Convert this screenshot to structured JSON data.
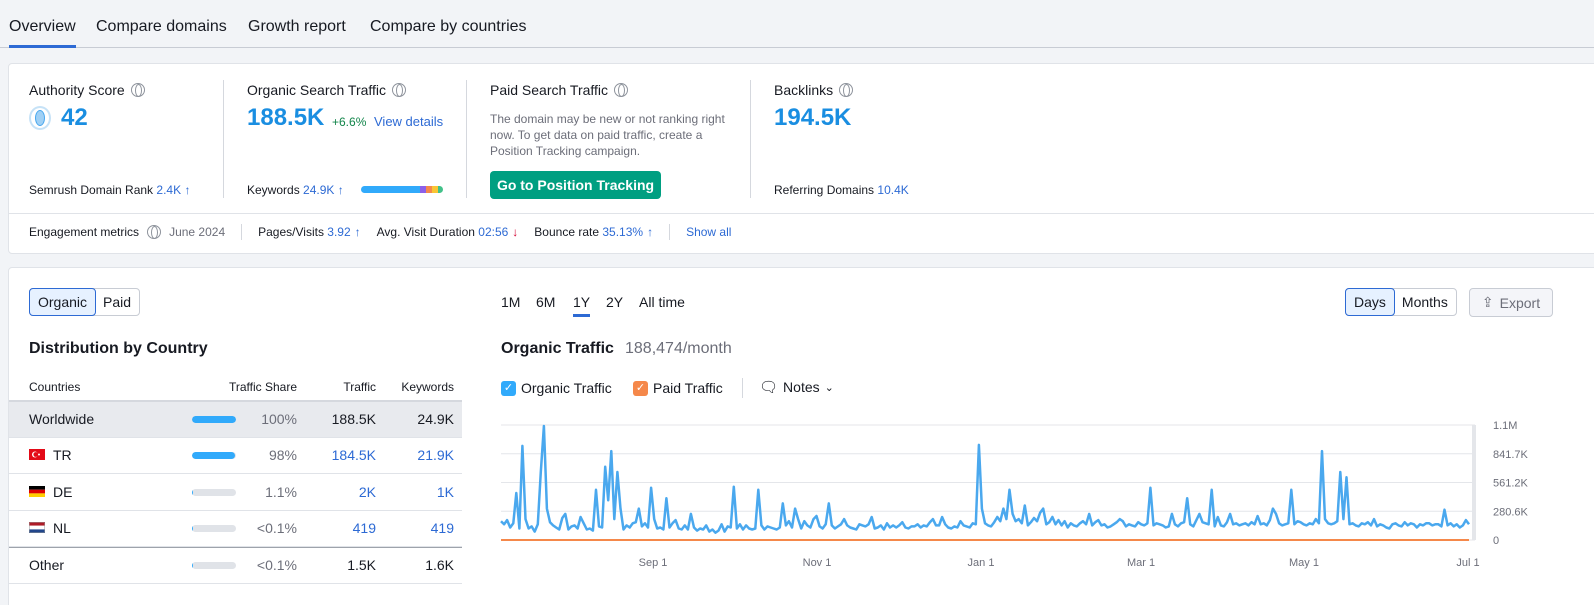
{
  "tabs": [
    "Overview",
    "Compare domains",
    "Growth report",
    "Compare by countries"
  ],
  "authority": {
    "title": "Authority Score",
    "value": "42",
    "rank_label": "Semrush Domain Rank",
    "rank_value": "2.4K"
  },
  "organic": {
    "title": "Organic Search Traffic",
    "value": "188.5K",
    "change": "+6.6%",
    "details_link": "View details",
    "keywords_label": "Keywords",
    "keywords_value": "24.9K"
  },
  "paid": {
    "title": "Paid Search Traffic",
    "note": "The domain may be new or not ranking right now. To get data on paid traffic, create a Position Tracking campaign.",
    "button": "Go to Position Tracking"
  },
  "backlinks": {
    "title": "Backlinks",
    "value": "194.5K",
    "ref_label": "Referring Domains",
    "ref_value": "10.4K"
  },
  "engagement": {
    "label": "Engagement metrics",
    "date": "June 2024",
    "pages_label": "Pages/Visits",
    "pages_value": "3.92",
    "duration_label": "Avg. Visit Duration",
    "duration_value": "02:56",
    "bounce_label": "Bounce rate",
    "bounce_value": "35.13%",
    "show_all": "Show all"
  },
  "toggle": {
    "organic": "Organic",
    "paid": "Paid"
  },
  "distribution": {
    "title": "Distribution by Country",
    "headers": {
      "countries": "Countries",
      "share": "Traffic Share",
      "traffic": "Traffic",
      "keywords": "Keywords"
    },
    "rows": [
      {
        "country": "Worldwide",
        "share": "100%",
        "share_fraction": 1.0,
        "traffic": "188.5K",
        "keywords": "24.9K"
      },
      {
        "country": "TR",
        "share": "98%",
        "share_fraction": 0.98,
        "traffic": "184.5K",
        "keywords": "21.9K"
      },
      {
        "country": "DE",
        "share": "1.1%",
        "share_fraction": 0.011,
        "traffic": "2K",
        "keywords": "1K"
      },
      {
        "country": "NL",
        "share": "<0.1%",
        "share_fraction": 0.001,
        "traffic": "419",
        "keywords": "419"
      },
      {
        "country": "Other",
        "share": "<0.1%",
        "share_fraction": 0.001,
        "traffic": "1.5K",
        "keywords": "1.6K"
      }
    ]
  },
  "ranges": [
    "1M",
    "6M",
    "1Y",
    "2Y",
    "All time"
  ],
  "granularity": {
    "days": "Days",
    "months": "Months",
    "export": "Export"
  },
  "chart_header": {
    "title": "Organic Traffic",
    "subtitle": "188,474/month"
  },
  "legend": {
    "organic": "Organic Traffic",
    "paid": "Paid Traffic",
    "notes": "Notes"
  },
  "colors": {
    "organic": "#4aa8ee",
    "paid": "#f5884a",
    "accent": "#2d6ad4",
    "button": "#009f81"
  },
  "chart_data": {
    "type": "line",
    "x_ticks": [
      "Sep 1",
      "Nov 1",
      "Jan 1",
      "Mar 1",
      "May 1",
      "Jul 1"
    ],
    "y_ticks": [
      "1.1M",
      "841.7K",
      "561.2K",
      "280.6K",
      "0"
    ],
    "ylim": [
      0,
      1100000
    ],
    "grid": true,
    "series": [
      {
        "name": "Organic Traffic",
        "values": [
          180000,
          150000,
          190000,
          120000,
          160000,
          450000,
          110000,
          900000,
          200000,
          110000,
          130000,
          80000,
          150000,
          650000,
          1090000,
          300000,
          170000,
          140000,
          120000,
          100000,
          210000,
          250000,
          100000,
          130000,
          140000,
          110000,
          220000,
          160000,
          100000,
          110000,
          90000,
          480000,
          130000,
          120000,
          700000,
          380000,
          850000,
          200000,
          650000,
          300000,
          100000,
          140000,
          120000,
          160000,
          170000,
          300000,
          130000,
          160000,
          120000,
          500000,
          200000,
          110000,
          120000,
          100000,
          400000,
          120000,
          160000,
          190000,
          110000,
          100000,
          140000,
          100000,
          250000,
          120000,
          90000,
          110000,
          100000,
          140000,
          80000,
          100000,
          70000,
          90000,
          150000,
          80000,
          130000,
          120000,
          510000,
          110000,
          150000,
          100000,
          140000,
          110000,
          100000,
          110000,
          480000,
          140000,
          100000,
          130000,
          120000,
          110000,
          100000,
          120000,
          350000,
          140000,
          180000,
          120000,
          300000,
          200000,
          110000,
          180000,
          140000,
          120000,
          200000,
          230000,
          130000,
          110000,
          150000,
          350000,
          140000,
          110000,
          130000,
          150000,
          200000,
          140000,
          120000,
          110000,
          100000,
          150000,
          140000,
          130000,
          150000,
          220000,
          110000,
          120000,
          140000,
          100000,
          160000,
          120000,
          140000,
          120000,
          140000,
          170000,
          120000,
          110000,
          130000,
          130000,
          150000,
          120000,
          140000,
          130000,
          170000,
          200000,
          140000,
          140000,
          220000,
          150000,
          120000,
          110000,
          130000,
          120000,
          180000,
          140000,
          130000,
          120000,
          160000,
          150000,
          910000,
          300000,
          160000,
          140000,
          130000,
          170000,
          220000,
          180000,
          300000,
          200000,
          480000,
          250000,
          180000,
          200000,
          160000,
          330000,
          140000,
          170000,
          210000,
          180000,
          260000,
          300000,
          150000,
          170000,
          220000,
          150000,
          190000,
          140000,
          180000,
          120000,
          160000,
          140000,
          130000,
          160000,
          180000,
          150000,
          250000,
          140000,
          170000,
          190000,
          140000,
          150000,
          120000,
          130000,
          150000,
          170000,
          200000,
          180000,
          130000,
          150000,
          140000,
          130000,
          170000,
          150000,
          140000,
          160000,
          500000,
          140000,
          160000,
          150000,
          140000,
          120000,
          130000,
          250000,
          150000,
          130000,
          160000,
          170000,
          400000,
          150000,
          130000,
          190000,
          250000,
          170000,
          160000,
          150000,
          480000,
          130000,
          220000,
          140000,
          130000,
          170000,
          250000,
          150000,
          160000,
          140000,
          150000,
          160000,
          140000,
          170000,
          150000,
          230000,
          150000,
          160000,
          140000,
          190000,
          300000,
          250000,
          160000,
          140000,
          150000,
          160000,
          480000,
          150000,
          180000,
          170000,
          150000,
          140000,
          160000,
          150000,
          200000,
          160000,
          850000,
          200000,
          160000,
          150000,
          160000,
          180000,
          650000,
          200000,
          600000,
          150000,
          160000,
          140000,
          130000,
          160000,
          150000,
          170000,
          140000,
          200000,
          130000,
          150000,
          140000,
          120000,
          110000,
          150000,
          160000,
          140000,
          130000,
          170000,
          140000,
          160000,
          150000,
          120000,
          150000,
          140000,
          160000,
          160000,
          140000,
          150000,
          150000,
          130000,
          290000,
          140000,
          160000,
          130000,
          150000,
          120000,
          140000,
          190000,
          150000
        ]
      },
      {
        "name": "Paid Traffic",
        "values": [
          0,
          0,
          0,
          0,
          0,
          0,
          0,
          0,
          0,
          0,
          0
        ]
      }
    ]
  }
}
